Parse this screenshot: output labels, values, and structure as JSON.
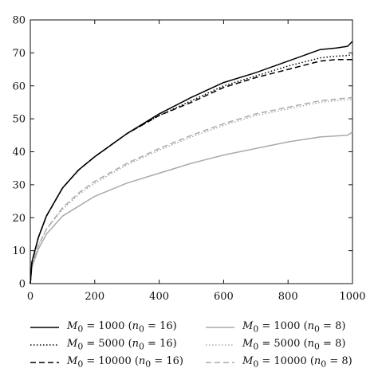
{
  "chart_data": {
    "type": "line",
    "title": "",
    "xlabel": "",
    "ylabel": "",
    "xlim": [
      0,
      1000
    ],
    "ylim": [
      0,
      80
    ],
    "xticks": [
      "0",
      "200",
      "400",
      "600",
      "800",
      "1000"
    ],
    "yticks": [
      "0",
      "10",
      "20",
      "30",
      "40",
      "50",
      "60",
      "70",
      "80"
    ],
    "grid": false,
    "legend_position": "bottom",
    "x": [
      0,
      5,
      25,
      50,
      100,
      150,
      200,
      300,
      400,
      500,
      600,
      700,
      800,
      900,
      950,
      985,
      1000
    ],
    "series": [
      {
        "name": "M0 = 1000 (n0 = 16)",
        "label_html": "<i>M</i><sub>0</sub> = 1000 (<i>n</i><sub>0</sub> = 16)",
        "color": "#000000",
        "dash": "solid",
        "values": [
          0,
          6.5,
          14,
          20.5,
          29,
          34.5,
          38.5,
          45.5,
          51.5,
          56.5,
          61,
          64,
          67.5,
          71,
          71.5,
          72,
          73.5
        ]
      },
      {
        "name": "M0 = 5000 (n0 = 16)",
        "label_html": "<i>M</i><sub>0</sub> = 5000 (<i>n</i><sub>0</sub> = 16)",
        "color": "#000000",
        "dash": "dotted",
        "values": [
          0,
          6.5,
          14,
          20.5,
          29,
          34.5,
          38.5,
          45.5,
          51,
          55.5,
          60,
          63,
          66,
          68.5,
          69,
          69.2,
          69.5
        ]
      },
      {
        "name": "M0 = 10000 (n0 = 16)",
        "label_html": "<i>M</i><sub>0</sub> = 10000 (<i>n</i><sub>0</sub> = 16)",
        "color": "#000000",
        "dash": "dashed",
        "values": [
          0,
          6.5,
          14,
          20.5,
          29,
          34.5,
          38.5,
          45.5,
          51,
          55,
          59.5,
          62.5,
          65,
          67.5,
          68,
          68,
          68
        ]
      },
      {
        "name": "M0 = 1000 (n0 = 8)",
        "label_html": "<i>M</i><sub>0</sub> = 1000 (<i>n</i><sub>0</sub> = 8)",
        "color": "#aaaaaa",
        "dash": "solid",
        "values": [
          0,
          5,
          10.5,
          15,
          20.5,
          23.5,
          26.5,
          30.5,
          33.5,
          36.5,
          39,
          41,
          43,
          44.5,
          44.8,
          45,
          46
        ]
      },
      {
        "name": "M0 = 5000 (n0 = 8)",
        "label_html": "<i>M</i><sub>0</sub> = 5000 (<i>n</i><sub>0</sub> = 8)",
        "color": "#aaaaaa",
        "dash": "dotted",
        "values": [
          0,
          5.5,
          11.5,
          16.5,
          22.5,
          27,
          30.5,
          36,
          40.5,
          44.5,
          48,
          51,
          53,
          55,
          55.5,
          55.8,
          56
        ]
      },
      {
        "name": "M0 = 10000 (n0 = 8)",
        "label_html": "<i>M</i><sub>0</sub> = 10000 (<i>n</i><sub>0</sub> = 8)",
        "color": "#aaaaaa",
        "dash": "dashed",
        "values": [
          0,
          5.5,
          11.5,
          16.5,
          23,
          27.5,
          31,
          36.5,
          41,
          45,
          48.5,
          51.5,
          53.5,
          55.5,
          56,
          56.3,
          56.5
        ]
      }
    ]
  }
}
